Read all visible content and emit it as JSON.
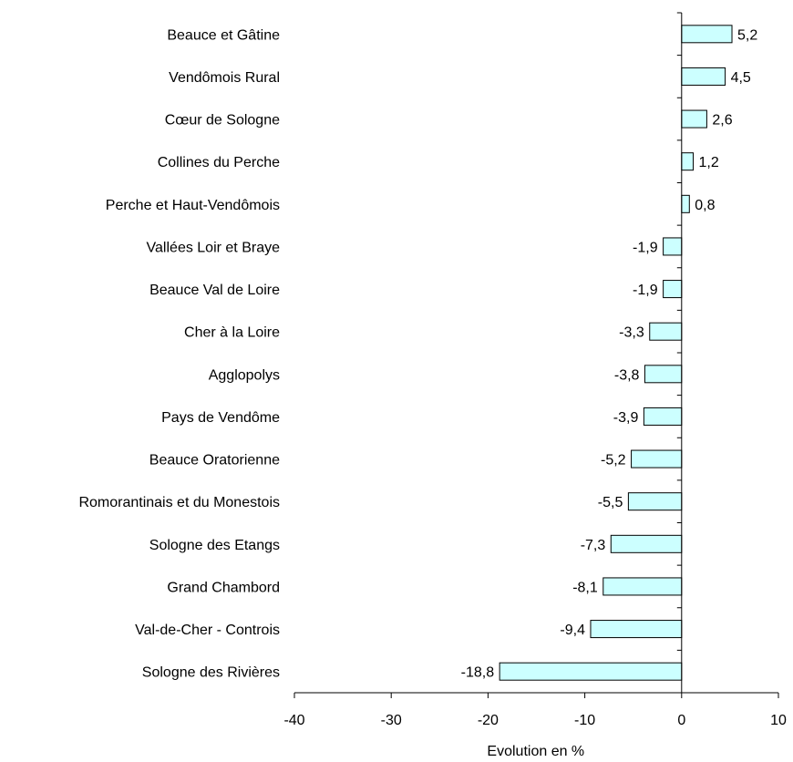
{
  "chart_data": {
    "type": "bar",
    "orientation": "horizontal",
    "categories": [
      "Beauce et Gâtine",
      "Vendômois Rural",
      "Cœur de Sologne",
      "Collines du Perche",
      "Perche et Haut-Vendômois",
      "Vallées Loir et Braye",
      "Beauce Val de Loire",
      "Cher à la Loire",
      "Agglopolys",
      "Pays de Vendôme",
      "Beauce Oratorienne",
      "Romorantinais et du Monestois",
      "Sologne des Etangs",
      "Grand Chambord",
      "Val-de-Cher - Controis",
      "Sologne des Rivières"
    ],
    "values": [
      5.2,
      4.5,
      2.6,
      1.2,
      0.8,
      -1.9,
      -1.9,
      -3.3,
      -3.8,
      -3.9,
      -5.2,
      -5.5,
      -7.3,
      -8.1,
      -9.4,
      -18.8
    ],
    "value_labels": [
      "5,2",
      "4,5",
      "2,6",
      "1,2",
      "0,8",
      "-1,9",
      "-1,9",
      "-3,3",
      "-3,8",
      "-3,9",
      "-5,2",
      "-5,5",
      "-7,3",
      "-8,1",
      "-9,4",
      "-18,8"
    ],
    "title": "",
    "xlabel": "Evolution en %",
    "ylabel": "",
    "xlim": [
      -40,
      10
    ],
    "xticks": [
      -40,
      -30,
      -20,
      -10,
      0,
      10
    ],
    "xtick_labels": [
      "-40",
      "-30",
      "-20",
      "-10",
      "0",
      "10"
    ],
    "grid": false,
    "legend": "none",
    "bar_color": "#ccffff",
    "bar_edge_color": "#000000"
  }
}
